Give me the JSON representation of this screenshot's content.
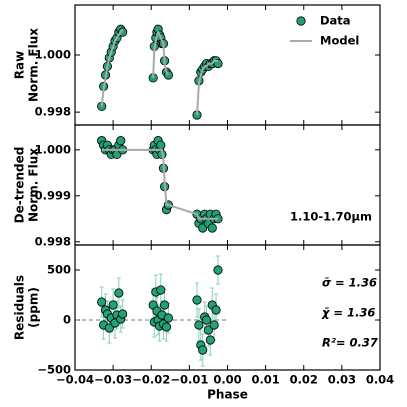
{
  "chart_data": [
    {
      "type": "scatter",
      "ylabel": [
        "Raw",
        "Norm. Flux"
      ],
      "legend": "upper right",
      "x": [
        -0.033,
        -0.0325,
        -0.032,
        -0.0315,
        -0.031,
        -0.0305,
        -0.03,
        -0.0295,
        -0.029,
        -0.0285,
        -0.028,
        -0.0275,
        -0.0195,
        -0.0192,
        -0.0188,
        -0.0185,
        -0.0182,
        -0.0178,
        -0.0175,
        -0.0172,
        -0.0168,
        -0.0165,
        -0.016,
        -0.0155,
        -0.008,
        -0.0075,
        -0.007,
        -0.0065,
        -0.006,
        -0.0055,
        -0.005,
        -0.0045,
        -0.004,
        -0.0035,
        -0.003,
        -0.0025
      ],
      "series": [
        {
          "name": "Data",
          "marker": "circle",
          "color": "#21a07a",
          "values": [
            0.9982,
            0.9989,
            0.9993,
            0.9996,
            0.9999,
            1.0001,
            1.0003,
            1.0005,
            1.0006,
            1.0008,
            1.0009,
            1.0008,
            0.9992,
            1.0003,
            1.0006,
            1.0008,
            1.0009,
            1.0007,
            1.0006,
            1.0004,
            1.0004,
            0.9998,
            0.9994,
            0.9993,
            0.9979,
            0.9991,
            0.9994,
            0.9995,
            0.9996,
            0.9997,
            0.9996,
            0.9997,
            0.9997,
            0.9998,
            0.9998,
            0.9997
          ]
        },
        {
          "name": "Model",
          "marker": "line",
          "color": "#aaaaaa",
          "values": [
            0.9982,
            0.9988,
            0.9992,
            0.9996,
            0.9999,
            1.0001,
            1.0003,
            1.0005,
            1.0006,
            1.0007,
            1.0008,
            1.0009,
            0.9992,
            1.0002,
            1.0005,
            1.0007,
            1.0008,
            1.0007,
            1.0006,
            1.0005,
            1.0004,
            0.9997,
            0.9994,
            0.9993,
            0.9979,
            0.999,
            0.9993,
            0.9995,
            0.9996,
            0.9996,
            0.9997,
            0.9997,
            0.9997,
            0.9998,
            0.9998,
            0.9998
          ]
        }
      ],
      "ylim": [
        0.99755,
        1.00175
      ],
      "yticks": [
        0.998,
        {
          "value": 1.0,
          "label": "1.000"
        }
      ]
    },
    {
      "type": "scatter",
      "ylabel": [
        "De-trended",
        "Norm. Flux"
      ],
      "annotations": [
        "1.10-1.70µm"
      ],
      "x": [
        -0.033,
        -0.0325,
        -0.032,
        -0.0315,
        -0.031,
        -0.0305,
        -0.03,
        -0.0295,
        -0.029,
        -0.0285,
        -0.028,
        -0.0275,
        -0.0195,
        -0.0192,
        -0.0188,
        -0.0185,
        -0.0182,
        -0.0178,
        -0.0175,
        -0.0172,
        -0.0168,
        -0.0165,
        -0.016,
        -0.0155,
        -0.008,
        -0.0075,
        -0.007,
        -0.0065,
        -0.006,
        -0.0055,
        -0.005,
        -0.0045,
        -0.004,
        -0.0035,
        -0.003,
        -0.0025
      ],
      "series": [
        {
          "marker": "circle",
          "color": "#21a07a",
          "values": [
            1.0002,
            1.0001,
            1.0,
            1.0001,
            1.0,
            0.9999,
            1.0,
            1.0,
            0.9999,
            1.0001,
            1.0002,
            1.0,
            1.0,
            1.0001,
            1.0,
            0.9999,
            1.0002,
            1.0,
            1.0001,
            0.9999,
            0.9996,
            0.9992,
            0.9987,
            0.9988,
            0.9986,
            0.9984,
            0.9985,
            0.9983,
            0.9986,
            0.9985,
            0.9984,
            0.9986,
            0.9983,
            0.9985,
            0.9986,
            0.9985
          ]
        },
        {
          "marker": "line",
          "color": "#aaaaaa",
          "connected": true,
          "values": [
            1.0,
            1.0,
            1.0,
            1.0,
            1.0,
            1.0,
            1.0,
            1.0,
            1.0,
            1.0,
            1.0,
            1.0,
            1.0,
            1.0,
            1.0,
            1.0,
            1.0,
            1.0,
            1.0,
            1.0,
            0.9998,
            0.9993,
            0.9988,
            0.9988,
            0.9986,
            0.9985,
            0.9985,
            0.9985,
            0.9985,
            0.9985,
            0.9985,
            0.9985,
            0.9985,
            0.9985,
            0.9985,
            0.9985
          ]
        }
      ],
      "ylim": [
        0.99793,
        1.00054
      ],
      "yticks": [
        0.998,
        0.999,
        {
          "value": 1.0,
          "label": "1.000"
        }
      ]
    },
    {
      "type": "scatter",
      "ylabel": [
        "Residuals",
        "(ppm)"
      ],
      "xlabel": "Phase",
      "annotations": [
        "σ̄ = 1.36",
        "χ̄ = 1.36",
        "R²= 0.37"
      ],
      "reference_line": true,
      "x": [
        -0.033,
        -0.0325,
        -0.032,
        -0.0315,
        -0.031,
        -0.0305,
        -0.03,
        -0.0295,
        -0.029,
        -0.0285,
        -0.028,
        -0.0275,
        -0.0195,
        -0.0192,
        -0.0188,
        -0.0185,
        -0.0182,
        -0.0178,
        -0.0175,
        -0.0172,
        -0.0168,
        -0.0165,
        -0.016,
        -0.0155,
        -0.008,
        -0.0075,
        -0.007,
        -0.0065,
        -0.006,
        -0.0055,
        -0.005,
        -0.0045,
        -0.004,
        -0.0035,
        -0.003,
        -0.0025
      ],
      "series": [
        {
          "marker": "circle",
          "color": "#21a07a",
          "error_color": "#86d1b6",
          "values": [
            180,
            -50,
            100,
            60,
            -80,
            20,
            150,
            -30,
            50,
            270,
            10,
            60,
            150,
            -20,
            280,
            90,
            0,
            -60,
            300,
            50,
            -40,
            150,
            -70,
            20,
            200,
            -50,
            -250,
            -300,
            30,
            0,
            -100,
            -200,
            150,
            -50,
            100,
            500
          ],
          "errors": [
            150,
            140,
            160,
            130,
            150,
            140,
            160,
            150,
            140,
            150,
            130,
            140,
            160,
            150,
            170,
            140,
            150,
            150,
            160,
            140,
            150,
            160,
            140,
            150,
            170,
            160,
            150,
            160,
            150,
            140,
            160,
            150,
            170,
            150,
            160,
            140
          ]
        }
      ],
      "xlim": [
        -0.04,
        0.04
      ],
      "xticks": [
        {
          "value": -0.04,
          "label": "−0.04"
        },
        {
          "value": -0.03,
          "label": "−0.03"
        },
        {
          "value": -0.02,
          "label": "−0.02"
        },
        {
          "value": -0.01,
          "label": "−0.01"
        },
        {
          "value": 0,
          "label": "0.00"
        },
        0.01,
        0.02,
        0.03,
        0.04
      ],
      "ylim": [
        -500,
        750
      ],
      "yticks": [
        {
          "value": -500,
          "label": "−500"
        },
        0,
        500
      ]
    }
  ]
}
